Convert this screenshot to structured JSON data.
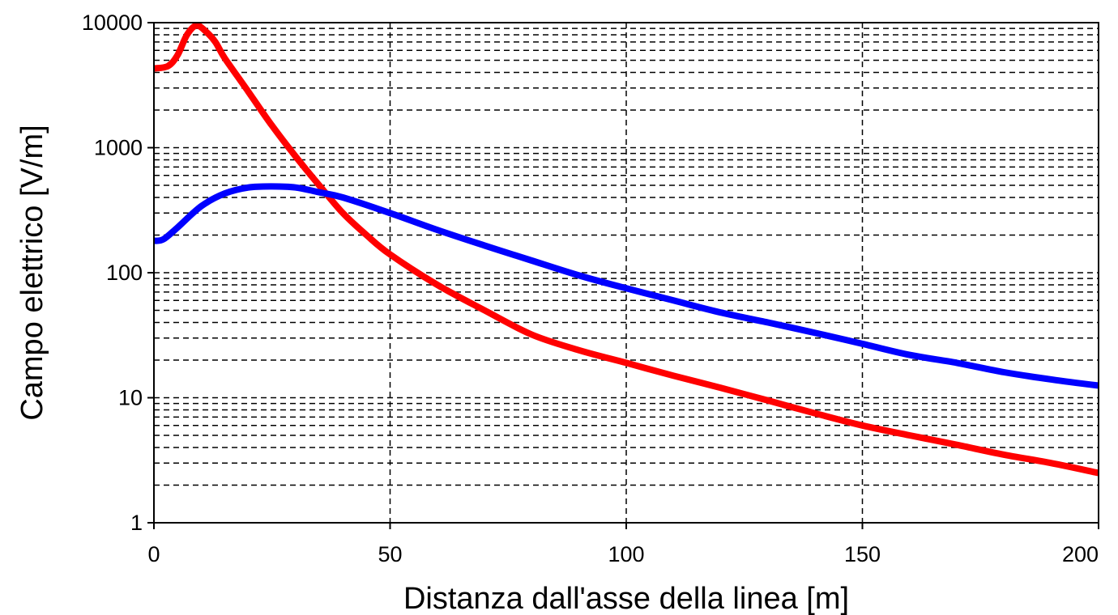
{
  "chart_data": {
    "type": "line",
    "title": "",
    "xlabel": "Distanza dall'asse della linea [m]",
    "ylabel": "Campo elettrico [V/m]",
    "xlim": [
      0,
      200
    ],
    "ylim": [
      1,
      10000
    ],
    "y_scale": "log",
    "x_ticks": [
      0,
      50,
      100,
      150,
      200
    ],
    "x_tick_labels": [
      "0",
      "50",
      "100",
      "150",
      "200"
    ],
    "y_ticks": [
      1,
      10,
      100,
      1000,
      10000
    ],
    "y_tick_labels": [
      "1",
      "10",
      "100",
      "1000",
      "10000"
    ],
    "grid": true,
    "legend": "none",
    "series": [
      {
        "color": "#ff0000",
        "x": [
          0,
          3,
          5,
          7,
          9,
          11,
          13,
          15,
          20,
          25,
          30,
          35,
          40,
          45,
          50,
          60,
          70,
          80,
          90,
          100,
          110,
          120,
          130,
          140,
          150,
          160,
          170,
          180,
          190,
          200
        ],
        "y": [
          4300,
          4500,
          5500,
          8000,
          9500,
          8500,
          7000,
          5200,
          2800,
          1500,
          850,
          500,
          300,
          200,
          140,
          80,
          50,
          32,
          24,
          19,
          15,
          12,
          9.5,
          7.5,
          6,
          5,
          4.2,
          3.5,
          3,
          2.5
        ]
      },
      {
        "color": "#0000ff",
        "x": [
          0,
          2,
          5,
          10,
          15,
          20,
          25,
          30,
          35,
          40,
          50,
          60,
          70,
          80,
          90,
          100,
          110,
          120,
          130,
          140,
          150,
          160,
          170,
          180,
          190,
          200
        ],
        "y": [
          180,
          185,
          230,
          340,
          430,
          480,
          490,
          480,
          440,
          400,
          300,
          220,
          165,
          125,
          95,
          75,
          60,
          48,
          40,
          33,
          27,
          22,
          19,
          16,
          14,
          12.5
        ]
      }
    ]
  }
}
